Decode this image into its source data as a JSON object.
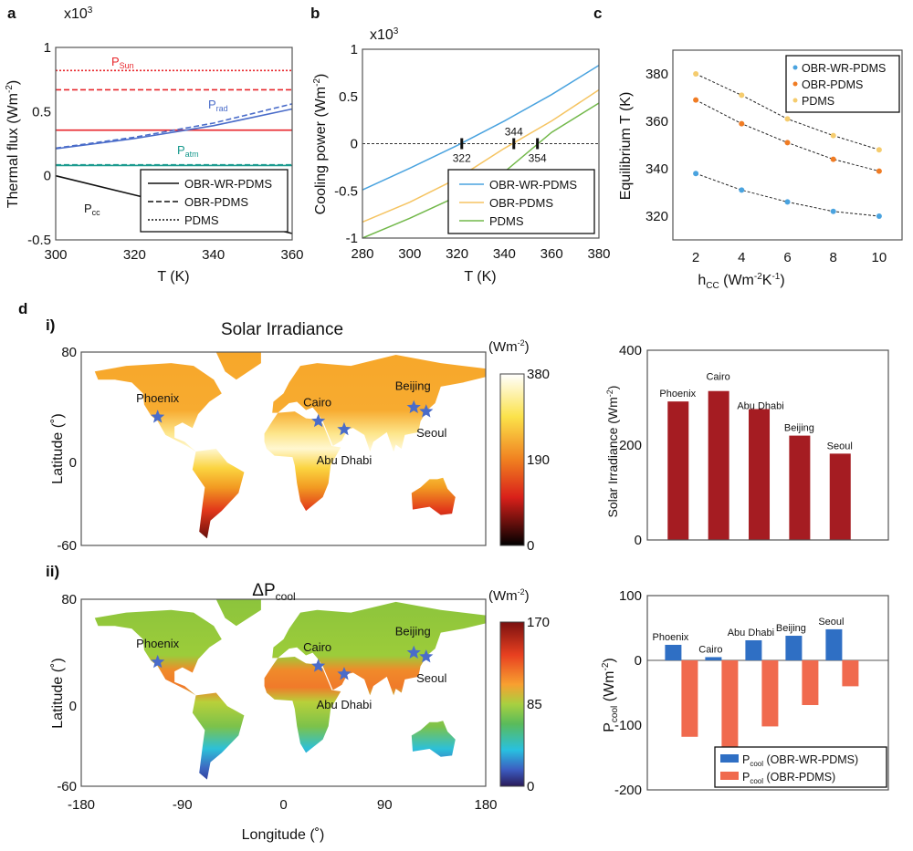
{
  "chart_data": [
    {
      "panel": "a",
      "type": "line",
      "xlabel": "T (K)",
      "ylabel": "Thermal flux (Wm-2)",
      "ylabel_main": "Thermal flux (Wm",
      "ylabel_sup": "-2",
      "ylabel_end": ")",
      "multiplier": "x10",
      "multiplier_exp": "3",
      "xlim": [
        300,
        360
      ],
      "ylim": [
        -0.5,
        1
      ],
      "xticks": [
        "300",
        "320",
        "340",
        "360"
      ],
      "yticks": [
        "-0.5",
        "0",
        "0.5",
        "1"
      ],
      "annotations": {
        "sun": "P",
        "sun_sub": "Sun",
        "rad": "P",
        "rad_sub": "rad",
        "atm": "P",
        "atm_sub": "atm",
        "cc": "P",
        "cc_sub": "cc"
      },
      "legend": [
        "OBR-WR-PDMS",
        "OBR-PDMS",
        "PDMS"
      ],
      "legend_position": "bottom-right",
      "x": [
        300,
        320,
        340,
        360
      ],
      "series": [
        {
          "group": "P_Sun",
          "style": "dotted",
          "color": "#e8262b",
          "values": [
            0.82,
            0.82,
            0.82,
            0.82
          ]
        },
        {
          "group": "P_Sun",
          "style": "dashed",
          "color": "#e8262b",
          "values": [
            0.67,
            0.67,
            0.67,
            0.67
          ]
        },
        {
          "group": "P_Sun",
          "style": "solid",
          "color": "#e8262b",
          "values": [
            0.355,
            0.355,
            0.355,
            0.355
          ]
        },
        {
          "group": "P_rad",
          "style": "dashed",
          "color": "#4a6cc9",
          "values": [
            0.215,
            0.3,
            0.41,
            0.56
          ]
        },
        {
          "group": "P_rad",
          "style": "solid",
          "color": "#4a6cc9",
          "values": [
            0.21,
            0.29,
            0.39,
            0.52
          ]
        },
        {
          "group": "P_atm",
          "style": "dashed",
          "color": "#1a9a8e",
          "values": [
            0.085,
            0.085,
            0.085,
            0.085
          ]
        },
        {
          "group": "P_atm",
          "style": "solid",
          "color": "#1a9a8e",
          "values": [
            0.08,
            0.08,
            0.08,
            0.08
          ]
        },
        {
          "group": "P_cc",
          "style": "solid",
          "color": "#111111",
          "values": [
            0,
            -0.15,
            -0.3,
            -0.45
          ]
        }
      ]
    },
    {
      "panel": "b",
      "type": "line",
      "xlabel": "T (K)",
      "ylabel_main": "Cooling power (Wm",
      "ylabel_sup": "-2",
      "ylabel_end": ")",
      "multiplier": "x10",
      "multiplier_exp": "3",
      "xlim": [
        280,
        380
      ],
      "ylim": [
        -1,
        1
      ],
      "xticks": [
        "280",
        "300",
        "320",
        "340",
        "360",
        "380"
      ],
      "yticks": [
        "-1",
        "-0.5",
        "0",
        "0.5",
        "1"
      ],
      "x": [
        280,
        300,
        320,
        340,
        360,
        380
      ],
      "series": [
        {
          "name": "OBR-WR-PDMS",
          "color": "#4aa3df",
          "values": [
            -0.49,
            -0.26,
            -0.02,
            0.24,
            0.52,
            0.83
          ]
        },
        {
          "name": "OBR-PDMS",
          "color": "#f5c462",
          "values": [
            -0.83,
            -0.62,
            -0.37,
            -0.05,
            0.24,
            0.57
          ]
        },
        {
          "name": "PDMS",
          "color": "#72b84a",
          "values": [
            -1.0,
            -0.79,
            -0.56,
            -0.3,
            0.12,
            0.43
          ]
        }
      ],
      "markers": [
        {
          "x": 322,
          "label": "322",
          "pos": "below"
        },
        {
          "x": 344,
          "label": "344",
          "pos": "above"
        },
        {
          "x": 354,
          "label": "354",
          "pos": "below"
        }
      ],
      "legend_position": "bottom-right"
    },
    {
      "panel": "c",
      "type": "scatter",
      "xlabel_main": "h",
      "xlabel_sub": "CC",
      "xlabel_rest": " (Wm",
      "xlabel_sup1": "-2",
      "xlabel_k": "K",
      "xlabel_sup2": "-1",
      "xlabel_end": ")",
      "ylabel": "Equilibrium T (K)",
      "xlim": [
        1,
        11
      ],
      "ylim": [
        310,
        390
      ],
      "xticks": [
        "2",
        "4",
        "6",
        "8",
        "10"
      ],
      "yticks": [
        "320",
        "340",
        "360",
        "380"
      ],
      "x": [
        2,
        4,
        6,
        8,
        10
      ],
      "series": [
        {
          "name": "OBR-WR-PDMS",
          "color": "#4aa3df",
          "values": [
            338,
            331,
            326,
            322,
            320
          ]
        },
        {
          "name": "OBR-PDMS",
          "color": "#f07c24",
          "values": [
            369,
            359,
            351,
            344,
            339
          ]
        },
        {
          "name": "PDMS",
          "color": "#f5cc6e",
          "values": [
            380,
            371,
            361,
            354,
            348
          ]
        }
      ],
      "legend_position": "top-right"
    },
    {
      "panel": "d-i-bar",
      "type": "bar",
      "ylabel": "Solar Irradiance (Wm-2)",
      "ylabel_main": "Solar Irradiance (Wm",
      "ylabel_sup": "-2",
      "ylabel_end": ")",
      "ylim": [
        0,
        400
      ],
      "yticks": [
        "0",
        "200",
        "400"
      ],
      "categories": [
        "Phoenix",
        "Cairo",
        "Abu Dhabi",
        "Beijing",
        "Seoul"
      ],
      "values": [
        292,
        314,
        276,
        220,
        182
      ],
      "color": "#a51c22"
    },
    {
      "panel": "d-ii-bar",
      "type": "bar",
      "ylabel_main": "P",
      "ylabel_sub": "cool",
      "ylabel_rest": " (Wm",
      "ylabel_sup": "-2",
      "ylabel_end": ")",
      "ylim": [
        -200,
        100
      ],
      "yticks": [
        "-200",
        "-100",
        "0",
        "100"
      ],
      "categories": [
        "Phoenix",
        "Cairo",
        "Abu Dhabi",
        "Beijing",
        "Seoul"
      ],
      "series": [
        {
          "name": "P_cool (OBR-WR-PDMS)",
          "label_main": "P",
          "label_sub": "cool",
          "label_rest": " (OBR-WR-PDMS)",
          "color": "#2f6fc4",
          "values": [
            24,
            5,
            31,
            38,
            48
          ]
        },
        {
          "name": "P_cool (OBR-PDMS)",
          "label_main": "P",
          "label_sub": "cool",
          "label_rest": " (OBR-PDMS)",
          "color": "#f06a4e",
          "values": [
            -118,
            -146,
            -102,
            -69,
            -40
          ]
        }
      ],
      "legend_position": "bottom-right"
    },
    {
      "panel": "d-i-map",
      "type": "heatmap",
      "title": "Solar Irradiance",
      "label": "i)",
      "colorbar_unit_main": "(Wm",
      "colorbar_unit_sup": "-2",
      "colorbar_unit_end": ")",
      "colorbar_ticks": [
        "380",
        "190",
        "0"
      ],
      "colorbar_range": [
        0,
        380
      ],
      "ylabel": "Latitude (˚)",
      "xlim": [
        -180,
        180
      ],
      "ylim": [
        -60,
        80
      ],
      "yticks": [
        "80",
        "0",
        "-60"
      ],
      "cities": [
        {
          "name": "Phoenix",
          "lon": -112,
          "lat": 33
        },
        {
          "name": "Cairo",
          "lon": 31,
          "lat": 30
        },
        {
          "name": "Abu Dhabi",
          "lon": 54,
          "lat": 24
        },
        {
          "name": "Beijing",
          "lon": 116,
          "lat": 40
        },
        {
          "name": "Seoul",
          "lon": 127,
          "lat": 37
        }
      ],
      "marker_color": "#4a6cc9"
    },
    {
      "panel": "d-ii-map",
      "type": "heatmap",
      "title_main": "ΔP",
      "title_sub": "cool",
      "label": "ii)",
      "colorbar_unit_main": "(Wm",
      "colorbar_unit_sup": "-2",
      "colorbar_unit_end": ")",
      "colorbar_ticks": [
        "170",
        "85",
        "0"
      ],
      "colorbar_range": [
        0,
        170
      ],
      "ylabel": "Latitude (˚)",
      "xlabel": "Longitude (˚)",
      "xlim": [
        -180,
        180
      ],
      "ylim": [
        -60,
        80
      ],
      "yticks": [
        "80",
        "0",
        "-60"
      ],
      "xticks": [
        "-180",
        "-90",
        "0",
        "90",
        "180"
      ]
    }
  ],
  "panel_labels": {
    "a": "a",
    "b": "b",
    "c": "c",
    "d": "d"
  }
}
